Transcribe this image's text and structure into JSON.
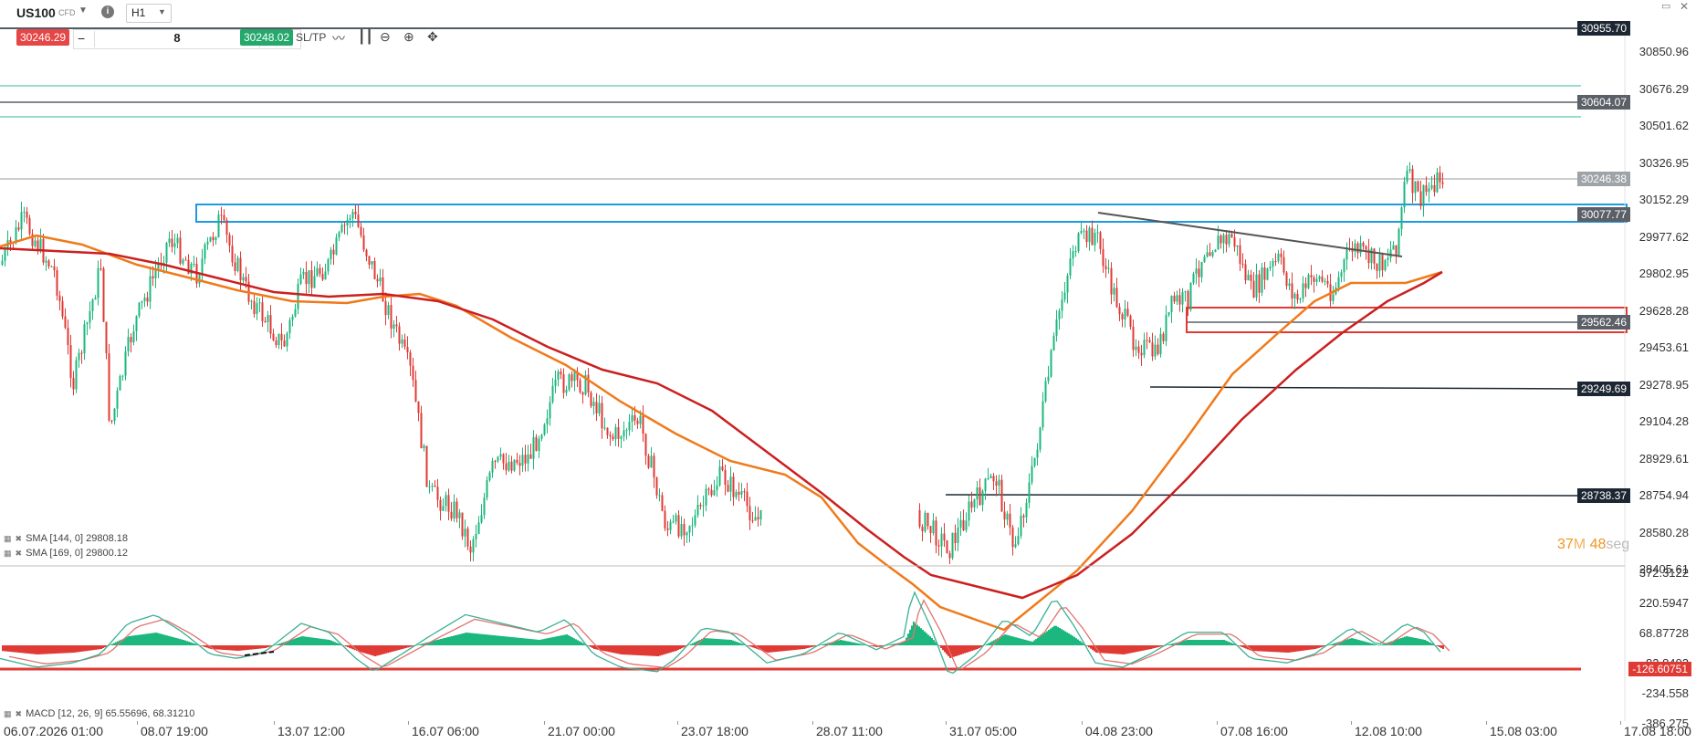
{
  "header": {
    "symbol": "US100",
    "instrument_type": "CFD",
    "timeframe": "H1",
    "info_icon": "info-icon",
    "timeframe_dropdown_icon": "chevron-down-icon",
    "symbol_dropdown_icon": "chevron-down-icon"
  },
  "trade_bar": {
    "sell_price": "30246.29",
    "minus": "−",
    "quantity": "8",
    "plus": "+",
    "buy_price": "30248.02",
    "sltp": "SL/TP",
    "swap_icon": "swap-icon",
    "colors": {
      "sell": "#e54646",
      "buy": "#24a86b"
    }
  },
  "toolbar_icons": [
    "line-chart-icon",
    "candlestick-icon",
    "zoom-out-icon",
    "zoom-in-icon",
    "crosshair-icon"
  ],
  "window_icons": [
    "minimize-icon",
    "close-icon"
  ],
  "price_axis": {
    "labels": [
      "30850.96",
      "30676.29",
      "30501.62",
      "30326.95",
      "30152.29",
      "29977.62",
      "29802.95",
      "29628.28",
      "29453.61",
      "29278.95",
      "29104.28",
      "28929.61",
      "28754.94",
      "28580.28",
      "28405.61"
    ],
    "tags": [
      {
        "value": "30955.70",
        "color": "#1d2733"
      },
      {
        "value": "30604.07",
        "color": "#5b6068"
      },
      {
        "value": "30246.38",
        "color": "#9ea3a8"
      },
      {
        "value": "30077.77",
        "color": "#5b6068"
      },
      {
        "value": "29562.46",
        "color": "#5b6068"
      },
      {
        "value": "29249.69",
        "color": "#1d2733"
      },
      {
        "value": "28738.37",
        "color": "#1d2733"
      }
    ]
  },
  "macd_axis": {
    "labels": [
      "372.3122",
      "220.5947",
      "68.87728",
      "-82.8402",
      "-234.558",
      "-386.275"
    ],
    "tag": {
      "value": "-126.60751",
      "color": "#e03a35"
    }
  },
  "legends": {
    "sma1": "SMA [144, 0] 29808.18",
    "sma2": "SMA [169, 0] 29800.12",
    "macd": "MACD [12, 26, 9] 65.55696, 68.31210",
    "legend_icons": [
      "grid-icon",
      "close-icon"
    ]
  },
  "timer": {
    "minutes": "37",
    "m_label": "M",
    "seconds": "48",
    "s_label": "seg"
  },
  "time_axis": {
    "labels": [
      "06.07.2026 01:00",
      "08.07 19:00",
      "13.07 12:00",
      "16.07 06:00",
      "21.07 00:00",
      "23.07 18:00",
      "28.07 11:00",
      "31.07 05:00",
      "04.08 23:00",
      "07.08 16:00",
      "12.08 10:00",
      "15.08 03:00",
      "17.08 18:00"
    ]
  },
  "colors": {
    "bull": "#1cb77e",
    "bear": "#e03a35",
    "sma_orange": "#f07a1a",
    "sma_red": "#cc1f1f",
    "zone_blue": "#1e9be0",
    "zone_red": "#e03a35",
    "teal_line": "#35b89a"
  }
}
